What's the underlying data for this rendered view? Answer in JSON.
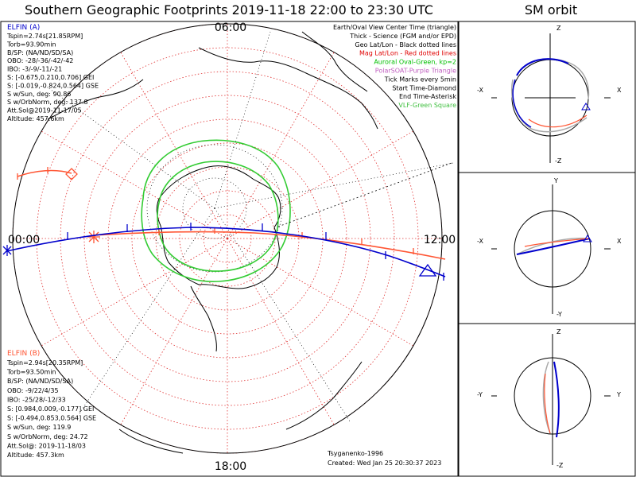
{
  "title": "Southern Geographic Footprints 2019-11-18 22:00 to 23:30 UTC",
  "sm_title": "SM orbit",
  "clock": {
    "top": "06:00",
    "left": "00:00",
    "right": "12:00",
    "bottom": "18:00"
  },
  "elfin_a": {
    "name": "ELFIN (A)",
    "lines": [
      "Tspin=2.74s[21.85RPM]",
      "Torb=93.90min",
      "B/SP: (NA/ND/SD/SA)",
      "OBO: -28/-36/-42/-42",
      "IBO: -3/-9/-11/-21",
      "S: [-0.675,0.210,0.706] GEI",
      "S: [-0.019,-0.824,0.564] GSE",
      "S w/Sun, deg: 90.86",
      "S w/OrbNorm, deg: 137.8",
      "Att.Sol@2019-11-17/05",
      "Altitude: 457.6km"
    ]
  },
  "elfin_b": {
    "name": "ELFIN (B)",
    "lines": [
      "Tspin=2.94s[20.35RPM]",
      "Torb=93.50min",
      "B/SP: (NA/ND/SD/SA)",
      "OBO: -9/22/4/35",
      "IBO: -25/28/-12/33",
      "S: [0.984,0.009,-0.177] GEI",
      "S: [-0.494,0.853,0.564] GSE",
      "S w/Sun, deg: 119.9",
      "S w/OrbNorm, deg: 24.72",
      "Att.Sol@: 2019-11-18/03",
      "Altitude: 457.3km"
    ]
  },
  "legend": [
    {
      "text": "Earth/Oval View Center Time (triangle)",
      "color": "#000000"
    },
    {
      "text": "Thick - Science (FGM and/or EPD)",
      "color": "#000000"
    },
    {
      "text": "Geo Lat/Lon - Black dotted lines",
      "color": "#000000"
    },
    {
      "text": "Mag Lat/Lon - Red dotted lines",
      "color": "#e00000"
    },
    {
      "text": "Auroral Oval-Green, kp=2",
      "color": "#00c000"
    },
    {
      "text": "PolarSOAT-Purple Triangle",
      "color": "#c060c0"
    },
    {
      "text": "Tick Marks every 5min",
      "color": "#000000"
    },
    {
      "text": "Start Time-Diamond",
      "color": "#000000"
    },
    {
      "text": "End Time-Asterisk",
      "color": "#000000"
    },
    {
      "text": "VLF-Green Square",
      "color": "#40c040"
    }
  ],
  "footer": {
    "model": "Tsyganenko-1996",
    "created": "Created: Wed Jan 25 20:30:37 2023"
  },
  "sm_panels": [
    {
      "top": "Z",
      "bottom": "-Z",
      "left": "-X",
      "right": "X"
    },
    {
      "top": "Y",
      "bottom": "-Y",
      "left": "-X",
      "right": "X"
    },
    {
      "top": "Z",
      "bottom": "-Z",
      "left": "-Y",
      "right": "Y"
    }
  ],
  "colors": {
    "elfin_a": "#0000cc",
    "elfin_b": "#ff5533",
    "oval": "#33cc33",
    "mag_grid": "#e03030",
    "geo_grid": "#000000"
  }
}
